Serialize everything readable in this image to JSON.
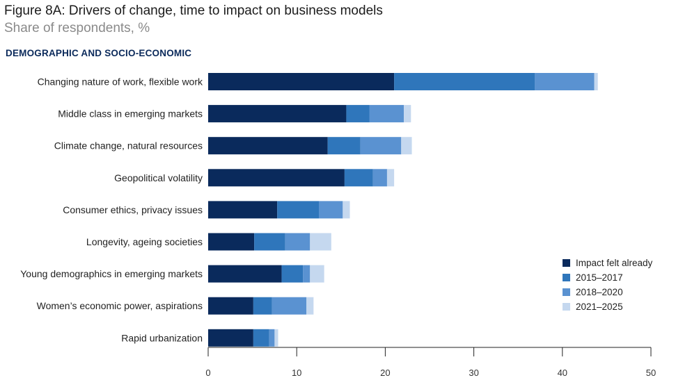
{
  "title": "Figure 8A: Drivers of change, time to impact on business models",
  "subtitle": "Share of respondents, %",
  "section_label": "DEMOGRAPHIC AND SOCIO-ECONOMIC",
  "colors": {
    "impact_felt_already": "#0a2a5c",
    "y2015_2017": "#2f76bb",
    "y2018_2020": "#5a92d1",
    "y2021_2025": "#c5d8ef",
    "axis": "#222222"
  },
  "chart_data": {
    "type": "bar",
    "orientation": "horizontal",
    "stacked": true,
    "categories": [
      "Changing nature of work, flexible work",
      "Middle class in emerging markets",
      "Climate change, natural resources",
      "Geopolitical volatility",
      "Consumer ethics, privacy issues",
      "Longevity, ageing societies",
      "Young demographics in emerging markets",
      "Women’s economic power, aspirations",
      "Rapid urbanization"
    ],
    "series": [
      {
        "name": "Impact felt already",
        "values": [
          21.0,
          15.6,
          13.5,
          15.4,
          7.8,
          5.2,
          8.3,
          5.1,
          5.1
        ]
      },
      {
        "name": "2015–2017",
        "values": [
          15.9,
          2.6,
          3.7,
          3.2,
          4.7,
          3.5,
          2.4,
          2.1,
          1.8
        ]
      },
      {
        "name": "2018–2020",
        "values": [
          6.7,
          3.9,
          4.6,
          1.6,
          2.7,
          2.8,
          0.8,
          3.9,
          0.6
        ]
      },
      {
        "name": "2021–2025",
        "values": [
          0.4,
          0.8,
          1.2,
          0.8,
          0.8,
          2.4,
          1.6,
          0.8,
          0.4
        ]
      }
    ],
    "xlim": [
      0,
      50
    ],
    "xticks": [
      0,
      10,
      20,
      30,
      40,
      50
    ],
    "legend_position": "right",
    "grid": false
  }
}
